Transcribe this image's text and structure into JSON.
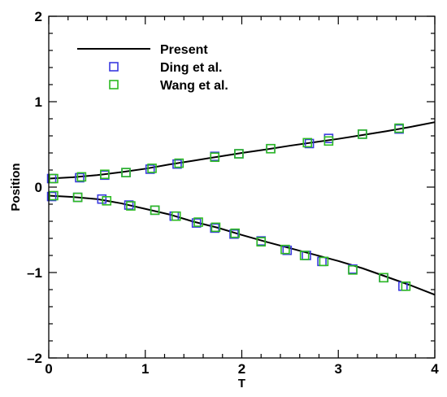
{
  "chart_data": {
    "type": "line",
    "title": "",
    "xlabel": "T",
    "ylabel": "Position",
    "xlim": [
      0,
      4
    ],
    "ylim": [
      -2,
      2
    ],
    "x_ticks": [
      0,
      1,
      2,
      3,
      4
    ],
    "x_tick_labels": [
      "0",
      "1",
      "2",
      "3",
      "4"
    ],
    "y_ticks": [
      -2,
      -1,
      0,
      1,
      2
    ],
    "y_tick_labels": [
      "–2",
      "–1",
      "0",
      "1",
      "2"
    ],
    "grid": false,
    "legend_position": "top-left",
    "series": [
      {
        "name": "Present",
        "kind": "line",
        "color": "#000000",
        "branches": [
          {
            "x": [
              0,
              0.25,
              0.5,
              0.75,
              1.0,
              1.25,
              1.5,
              1.75,
              2.0,
              2.25,
              2.5,
              2.75,
              3.0,
              3.25,
              3.5,
              3.75,
              4.0
            ],
            "y": [
              0.1,
              0.115,
              0.14,
              0.175,
              0.215,
              0.265,
              0.31,
              0.355,
              0.4,
              0.44,
              0.485,
              0.525,
              0.565,
              0.61,
              0.655,
              0.705,
              0.76
            ]
          },
          {
            "x": [
              0,
              0.25,
              0.5,
              0.75,
              1.0,
              1.25,
              1.5,
              1.75,
              2.0,
              2.25,
              2.5,
              2.75,
              3.0,
              3.25,
              3.5,
              3.75,
              4.0
            ],
            "y": [
              -0.1,
              -0.115,
              -0.14,
              -0.19,
              -0.255,
              -0.32,
              -0.405,
              -0.475,
              -0.56,
              -0.64,
              -0.715,
              -0.79,
              -0.865,
              -0.95,
              -1.05,
              -1.15,
              -1.26
            ]
          }
        ]
      },
      {
        "name": "Ding et al.",
        "kind": "marker",
        "marker": "square",
        "color": "#3a3adf",
        "points": [
          [
            0.03,
            0.1
          ],
          [
            0.32,
            0.11
          ],
          [
            0.58,
            0.14
          ],
          [
            0.8,
            0.17
          ],
          [
            1.05,
            0.21
          ],
          [
            1.33,
            0.27
          ],
          [
            1.72,
            0.36
          ],
          [
            1.97,
            0.39
          ],
          [
            2.3,
            0.45
          ],
          [
            2.7,
            0.51
          ],
          [
            2.9,
            0.57
          ],
          [
            3.25,
            0.62
          ],
          [
            3.63,
            0.68
          ],
          [
            0.03,
            -0.11
          ],
          [
            0.3,
            -0.12
          ],
          [
            0.55,
            -0.14
          ],
          [
            0.83,
            -0.21
          ],
          [
            1.1,
            -0.27
          ],
          [
            1.3,
            -0.34
          ],
          [
            1.53,
            -0.42
          ],
          [
            1.72,
            -0.48
          ],
          [
            1.92,
            -0.55
          ],
          [
            2.2,
            -0.63
          ],
          [
            2.47,
            -0.74
          ],
          [
            2.67,
            -0.8
          ],
          [
            2.83,
            -0.87
          ],
          [
            3.15,
            -0.96
          ],
          [
            3.47,
            -1.06
          ],
          [
            3.67,
            -1.16
          ]
        ]
      },
      {
        "name": "Wang et al.",
        "kind": "marker",
        "marker": "square",
        "color": "#2dbb22",
        "points": [
          [
            0.05,
            0.1
          ],
          [
            0.34,
            0.12
          ],
          [
            0.58,
            0.15
          ],
          [
            0.8,
            0.17
          ],
          [
            1.07,
            0.22
          ],
          [
            1.35,
            0.28
          ],
          [
            1.72,
            0.35
          ],
          [
            1.97,
            0.39
          ],
          [
            2.3,
            0.45
          ],
          [
            2.68,
            0.52
          ],
          [
            2.9,
            0.54
          ],
          [
            3.25,
            0.62
          ],
          [
            3.63,
            0.69
          ],
          [
            0.05,
            -0.1
          ],
          [
            0.3,
            -0.12
          ],
          [
            0.6,
            -0.16
          ],
          [
            0.85,
            -0.22
          ],
          [
            1.1,
            -0.27
          ],
          [
            1.32,
            -0.34
          ],
          [
            1.55,
            -0.41
          ],
          [
            1.73,
            -0.47
          ],
          [
            1.93,
            -0.54
          ],
          [
            2.2,
            -0.64
          ],
          [
            2.45,
            -0.73
          ],
          [
            2.65,
            -0.8
          ],
          [
            2.85,
            -0.87
          ],
          [
            3.15,
            -0.97
          ],
          [
            3.47,
            -1.06
          ],
          [
            3.7,
            -1.16
          ]
        ]
      }
    ]
  }
}
